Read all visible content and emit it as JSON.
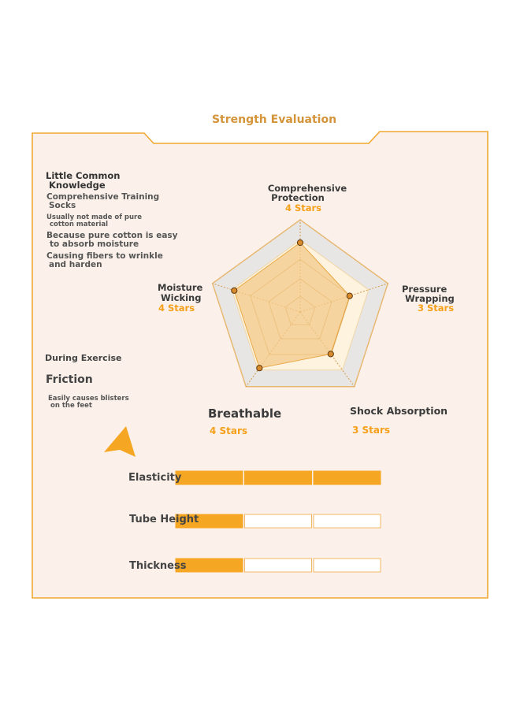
{
  "title": "Strength Evaluation",
  "colors": {
    "accent": "#f5a623",
    "frame": "#f0a832",
    "panel_bg": "#fbf1ea",
    "ring_grey": "#e8e6e4",
    "fill_cream": "#fdf3de",
    "fill_orange": "#f3c98a",
    "text_dark": "#3a3a3a",
    "text_orange": "#f5a01a"
  },
  "notes": {
    "heading_line1": "Little Common",
    "heading_line2": "Knowledge",
    "item1_line1": "Comprehensive Training",
    "item1_line2": "Socks",
    "item2_line1": "Usually not made of pure",
    "item2_line2": "cotton material",
    "item3_line1": "Because pure cotton is easy",
    "item3_line2": "to absorb moisture",
    "item4_line1": "Causing fibers to wrinkle",
    "item4_line2": "and harden"
  },
  "exercise": {
    "label": "During Exercise",
    "friction": "Friction",
    "desc_line1": "Easily causes blisters",
    "desc_line2": "on the feet"
  },
  "chart_data": [
    {
      "type": "radar",
      "max": 5,
      "levels": 5,
      "axes": [
        {
          "line1": "Comprehensive",
          "line2": "Protection",
          "stars": "4 Stars",
          "value": 4
        },
        {
          "line1": "Pressure",
          "line2": "Wrapping",
          "stars": "3 Stars",
          "value": 3
        },
        {
          "line1": "Shock Absorption",
          "line2": "",
          "stars": "3 Stars",
          "value": 3
        },
        {
          "line1": "Breathable",
          "line2": "",
          "stars": "4 Stars",
          "value": 4
        },
        {
          "line1": "Moisture",
          "line2": "Wicking",
          "stars": "4 Stars",
          "value": 4
        }
      ]
    },
    {
      "type": "bar",
      "segments": 3,
      "categories": [
        "Elasticity",
        "Tube Height",
        "Thickness"
      ],
      "values": [
        3,
        1,
        1
      ]
    }
  ]
}
